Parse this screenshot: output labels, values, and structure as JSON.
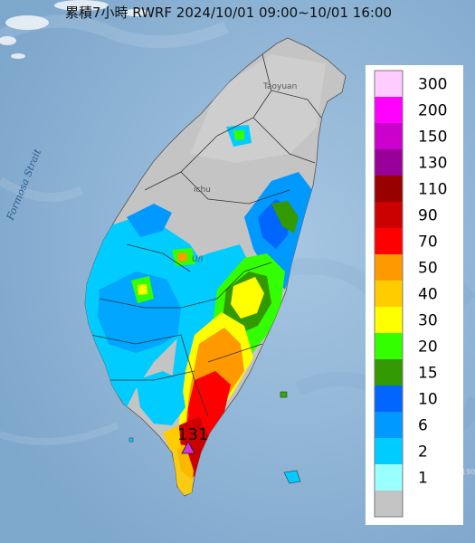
{
  "title": "累積7小時 RWRF 2024/10/01 09:00~10/01 16:00",
  "strait_label": "Formosa Strait",
  "place_labels": [
    "Taoyuan",
    "ichu",
    "U/I"
  ],
  "peak_value": "131",
  "sea_marker": "190",
  "colors": {
    "sea": "#8fb4d6",
    "land": "#c4c4c4",
    "peak_marker": "#d633e0"
  },
  "legend": {
    "classes": [
      {
        "label": "300",
        "color": "#ffccff"
      },
      {
        "label": "200",
        "color": "#ff00ff"
      },
      {
        "label": "150",
        "color": "#cc00cc"
      },
      {
        "label": "130",
        "color": "#990099"
      },
      {
        "label": "110",
        "color": "#990000"
      },
      {
        "label": "90",
        "color": "#cc0000"
      },
      {
        "label": "70",
        "color": "#ff0000"
      },
      {
        "label": "50",
        "color": "#ff9900"
      },
      {
        "label": "40",
        "color": "#ffcc00"
      },
      {
        "label": "30",
        "color": "#ffff00"
      },
      {
        "label": "20",
        "color": "#33ff00"
      },
      {
        "label": "15",
        "color": "#339900"
      },
      {
        "label": "10",
        "color": "#0066ff"
      },
      {
        "label": "6",
        "color": "#0099ff"
      },
      {
        "label": "2",
        "color": "#00ccff"
      },
      {
        "label": "1",
        "color": "#99ffff"
      },
      {
        "label": "",
        "color": "#c4c4c4"
      }
    ]
  }
}
